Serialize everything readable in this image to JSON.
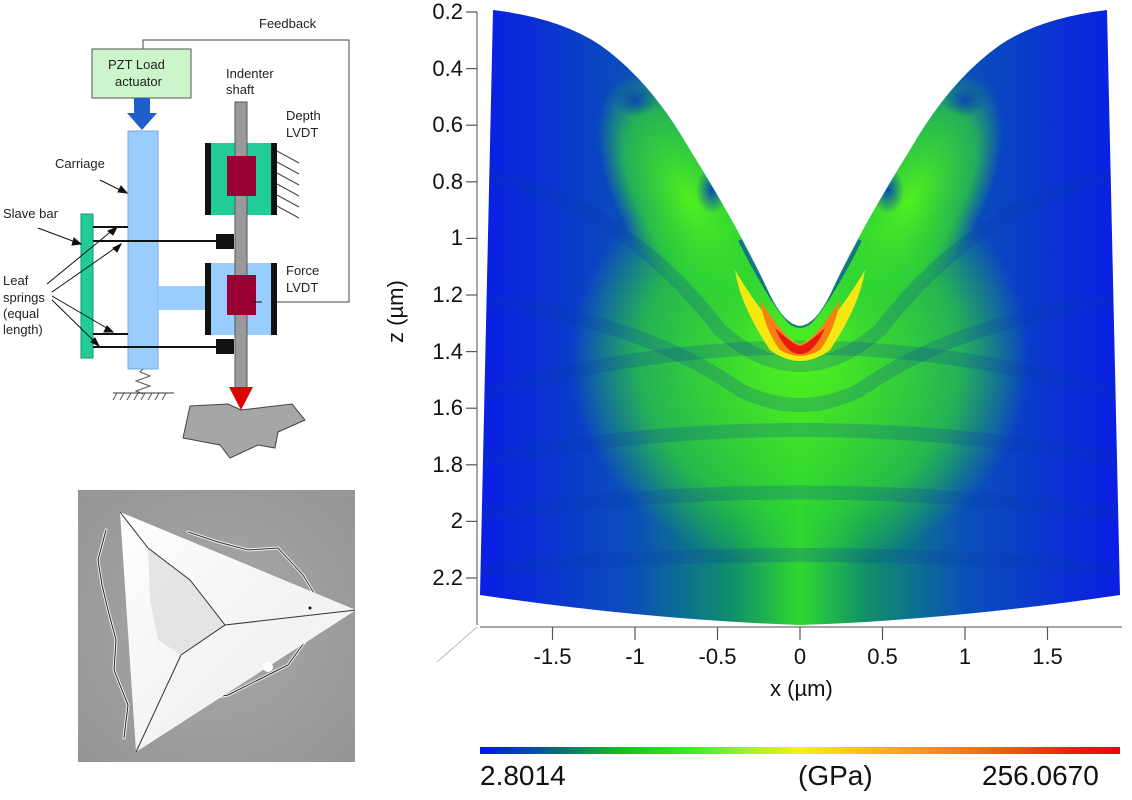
{
  "diagram": {
    "labels": {
      "feedback": "Feedback",
      "pzt_line1": "PZT Load",
      "pzt_line2": "actuator",
      "indenter_line1": "Indenter",
      "indenter_line2": "shaft",
      "depth_line1": "Depth",
      "depth_line2": "LVDT",
      "carriage": "Carriage",
      "slave_bar": "Slave bar",
      "leaf1": "Leaf",
      "leaf2": "springs",
      "leaf3": "(equal",
      "leaf4": "length)",
      "force_line1": "Force",
      "force_line2": "LVDT"
    },
    "colors": {
      "pzt_box": "#ccf5cc",
      "carriage": "#99ccff",
      "slave_bar": "#22cc99",
      "lvdt_depth": "#22cc99",
      "lvdt_force": "#99ccff",
      "core": "#990033",
      "arrow_blue": "#1f5fcc",
      "tip": "#e00000",
      "sample": "#a6a6a6"
    }
  },
  "micrograph": {
    "description": "SEM image of triangular Berkovich indent with radial cracks"
  },
  "chart_data": {
    "type": "heatmap",
    "title": "",
    "xlabel": "x (µm)",
    "ylabel": "z (µm)",
    "xlim": [
      -1.95,
      1.95
    ],
    "ylim": [
      2.4,
      0.2
    ],
    "x_ticks": [
      "-1.5",
      "-1",
      "-0.5",
      "0",
      "0.5",
      "1",
      "1.5"
    ],
    "x_tick_values": [
      -1.5,
      -1,
      -0.5,
      0,
      0.5,
      1,
      1.5
    ],
    "y_ticks": [
      "0.2",
      "0.4",
      "0.6",
      "0.8",
      "1",
      "1.2",
      "1.4",
      "1.6",
      "1.8",
      "2",
      "2.2"
    ],
    "y_tick_values": [
      0.2,
      0.4,
      0.6,
      0.8,
      1.0,
      1.2,
      1.4,
      1.6,
      1.8,
      2.0,
      2.2
    ],
    "colorbar": {
      "min": 2.8014,
      "max": 256.067,
      "min_label": "2.8014",
      "max_label": "256.0670",
      "unit_label": "(GPa)",
      "colormap": "blue-green-yellow-red"
    },
    "features": {
      "indent_tip_x": 0,
      "indent_tip_z": 1.32,
      "peak_stress_region": "below indent tip, z ≈ 1.35–1.4 µm",
      "surface_top_edge_z_at_x_-1.9": 0.2,
      "surface_top_edge_z_at_x_1.9": 0.2
    }
  }
}
